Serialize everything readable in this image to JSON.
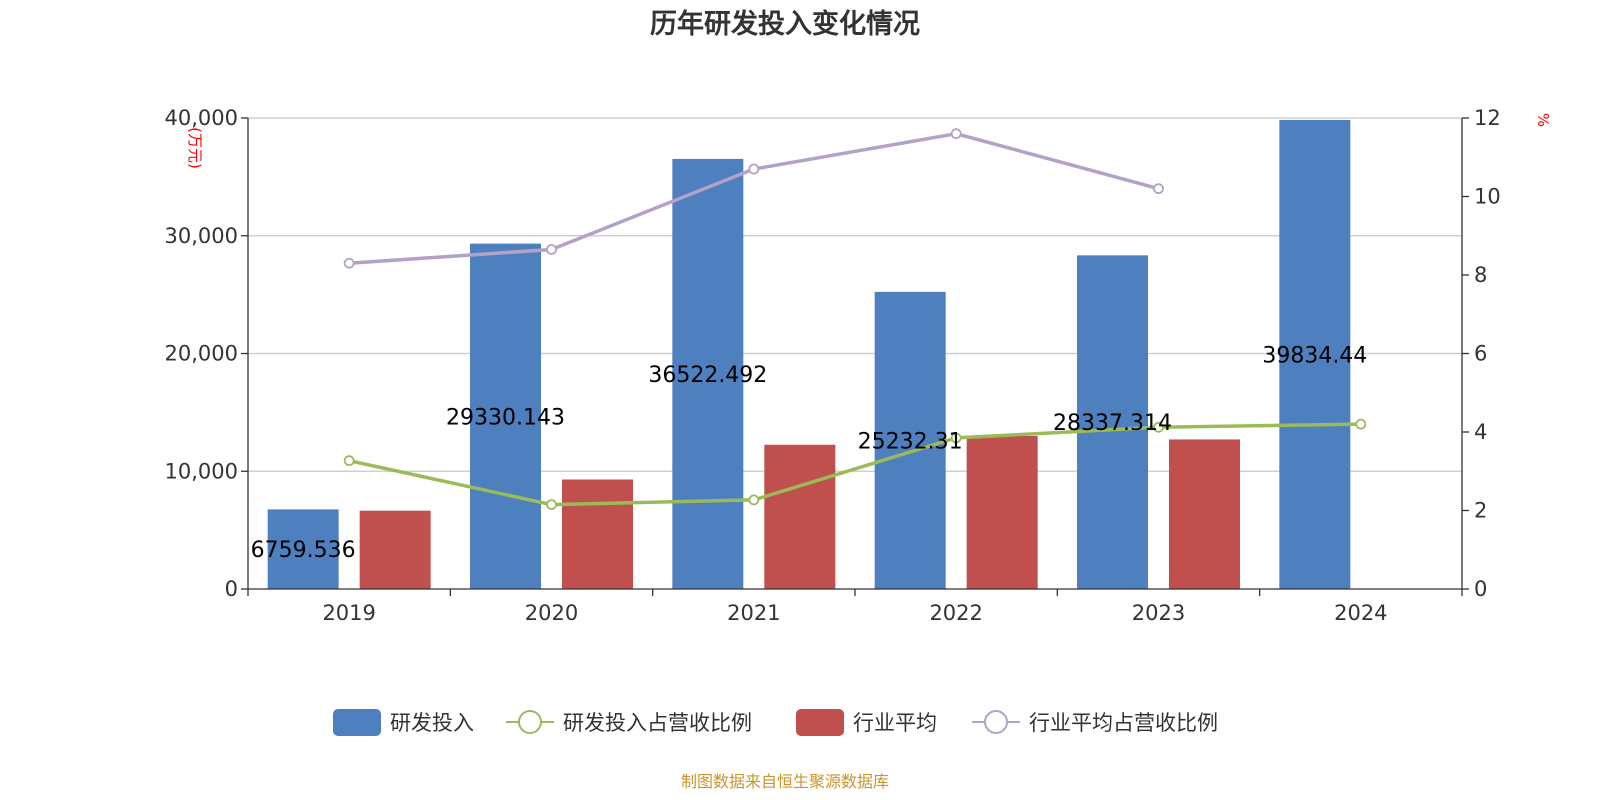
{
  "chart_data": {
    "type": "bar",
    "title": "历年研发投入变化情况",
    "categories": [
      "2019",
      "2020",
      "2021",
      "2022",
      "2023",
      "2024"
    ],
    "y_left": {
      "unit": "(万元)",
      "ylim": [
        0,
        40000
      ],
      "ticks": [
        "0",
        "10,000",
        "20,000",
        "30,000",
        "40,000"
      ]
    },
    "y_right": {
      "unit": "%",
      "ylim": [
        0,
        12
      ],
      "ticks": [
        "0",
        "2",
        "4",
        "6",
        "8",
        "10",
        "12"
      ]
    },
    "series": [
      {
        "name": "研发投入",
        "type": "bar",
        "axis": "left",
        "color": "#4e7fbf",
        "values": [
          6759.536,
          29330.143,
          36522.492,
          25232.31,
          28337.314,
          39834.44
        ],
        "labels": [
          "6759.536",
          "29330.143",
          "36522.492",
          "25232.31",
          "28337.314",
          "39834.44"
        ]
      },
      {
        "name": "研发投入占营收比例",
        "type": "line",
        "axis": "right",
        "color": "#9bbb59",
        "values": [
          3.27,
          2.15,
          2.27,
          3.85,
          4.12,
          4.2
        ]
      },
      {
        "name": "行业平均",
        "type": "bar",
        "axis": "left",
        "color": "#c0504d",
        "values": [
          6650,
          9300,
          12250,
          13000,
          12700,
          null
        ]
      },
      {
        "name": "行业平均占营收比例",
        "type": "line",
        "axis": "right",
        "color": "#b3a2c7",
        "values": [
          8.3,
          8.65,
          10.7,
          11.6,
          10.2,
          null
        ]
      }
    ],
    "grid": true,
    "legend_position": "bottom"
  },
  "source": "制图数据来自恒生聚源数据库"
}
